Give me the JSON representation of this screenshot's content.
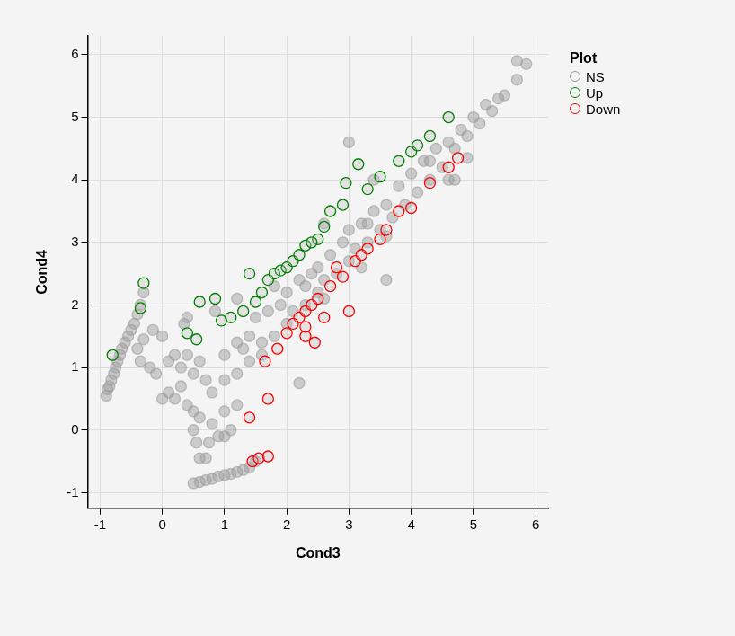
{
  "chart_data": {
    "type": "scatter",
    "x_label": "Cond3",
    "y_label": "Cond4",
    "legend_title": "Plot",
    "legend": "top-right",
    "grid": true,
    "xlim": [
      -1.2,
      6.2
    ],
    "ylim": [
      -1.25,
      6.3
    ],
    "xticks": [
      -1,
      0,
      1,
      2,
      3,
      4,
      5,
      6
    ],
    "yticks": [
      -1,
      0,
      1,
      2,
      3,
      4,
      5,
      6
    ],
    "series": [
      {
        "name": "NS",
        "color": "#999999",
        "marker": "circle",
        "values": [
          [
            -0.9,
            0.55
          ],
          [
            -0.88,
            0.65
          ],
          [
            -0.85,
            0.7
          ],
          [
            -0.82,
            0.8
          ],
          [
            -0.78,
            0.9
          ],
          [
            -0.75,
            1.0
          ],
          [
            -0.72,
            1.1
          ],
          [
            -0.68,
            1.2
          ],
          [
            -0.65,
            1.3
          ],
          [
            -0.6,
            1.4
          ],
          [
            -0.55,
            1.5
          ],
          [
            -0.5,
            1.6
          ],
          [
            -0.45,
            1.7
          ],
          [
            -0.4,
            1.85
          ],
          [
            -0.35,
            2.0
          ],
          [
            -0.3,
            2.2
          ],
          [
            -0.4,
            1.3
          ],
          [
            -0.3,
            1.45
          ],
          [
            -0.15,
            1.6
          ],
          [
            0.0,
            1.5
          ],
          [
            -0.35,
            1.1
          ],
          [
            -0.2,
            1.0
          ],
          [
            -0.1,
            0.9
          ],
          [
            0.0,
            0.5
          ],
          [
            0.1,
            0.6
          ],
          [
            0.2,
            0.5
          ],
          [
            0.3,
            0.7
          ],
          [
            0.4,
            0.4
          ],
          [
            0.5,
            0.3
          ],
          [
            0.6,
            0.2
          ],
          [
            0.5,
            0.0
          ],
          [
            0.55,
            -0.2
          ],
          [
            0.6,
            -0.45
          ],
          [
            0.7,
            -0.45
          ],
          [
            0.75,
            -0.2
          ],
          [
            0.8,
            0.1
          ],
          [
            0.9,
            -0.1
          ],
          [
            0.3,
            1.0
          ],
          [
            0.4,
            1.2
          ],
          [
            0.5,
            0.9
          ],
          [
            0.6,
            1.1
          ],
          [
            0.7,
            0.8
          ],
          [
            0.8,
            0.6
          ],
          [
            1.0,
            0.3
          ],
          [
            1.1,
            0.0
          ],
          [
            1.0,
            -0.1
          ],
          [
            1.2,
            0.4
          ],
          [
            0.2,
            1.2
          ],
          [
            0.1,
            1.1
          ],
          [
            0.35,
            1.7
          ],
          [
            0.4,
            1.8
          ],
          [
            0.5,
            -0.85
          ],
          [
            0.6,
            -0.83
          ],
          [
            0.7,
            -0.8
          ],
          [
            0.8,
            -0.78
          ],
          [
            0.9,
            -0.74
          ],
          [
            1.0,
            -0.72
          ],
          [
            1.1,
            -0.7
          ],
          [
            1.2,
            -0.67
          ],
          [
            1.3,
            -0.64
          ],
          [
            1.4,
            -0.6
          ],
          [
            1.5,
            -0.5
          ],
          [
            1.0,
            1.2
          ],
          [
            1.0,
            0.8
          ],
          [
            1.2,
            1.4
          ],
          [
            1.2,
            0.9
          ],
          [
            1.4,
            1.5
          ],
          [
            1.4,
            1.1
          ],
          [
            1.5,
            1.8
          ],
          [
            1.6,
            1.4
          ],
          [
            1.7,
            1.9
          ],
          [
            1.8,
            1.5
          ],
          [
            1.9,
            2.0
          ],
          [
            2.0,
            1.7
          ],
          [
            2.0,
            2.2
          ],
          [
            2.1,
            1.9
          ],
          [
            2.2,
            2.4
          ],
          [
            2.3,
            2.0
          ],
          [
            2.4,
            2.5
          ],
          [
            2.5,
            2.2
          ],
          [
            2.5,
            2.6
          ],
          [
            2.6,
            2.4
          ],
          [
            2.7,
            2.8
          ],
          [
            2.8,
            2.5
          ],
          [
            2.9,
            3.0
          ],
          [
            3.0,
            2.7
          ],
          [
            3.0,
            3.2
          ],
          [
            3.1,
            2.9
          ],
          [
            3.2,
            3.3
          ],
          [
            3.3,
            3.0
          ],
          [
            3.4,
            3.5
          ],
          [
            3.5,
            3.2
          ],
          [
            3.6,
            3.6
          ],
          [
            3.7,
            3.4
          ],
          [
            3.8,
            3.9
          ],
          [
            3.9,
            3.6
          ],
          [
            4.0,
            4.1
          ],
          [
            4.1,
            3.8
          ],
          [
            4.2,
            4.3
          ],
          [
            4.3,
            4.0
          ],
          [
            4.4,
            4.5
          ],
          [
            4.5,
            4.2
          ],
          [
            4.6,
            4.6
          ],
          [
            4.7,
            4.5
          ],
          [
            4.8,
            4.8
          ],
          [
            4.9,
            4.7
          ],
          [
            5.0,
            5.0
          ],
          [
            5.1,
            4.9
          ],
          [
            5.2,
            5.2
          ],
          [
            5.3,
            5.1
          ],
          [
            5.4,
            5.3
          ],
          [
            5.5,
            5.35
          ],
          [
            5.7,
            5.9
          ],
          [
            5.85,
            5.85
          ],
          [
            5.7,
            5.6
          ],
          [
            1.2,
            2.1
          ],
          [
            1.8,
            2.3
          ],
          [
            2.2,
            0.75
          ],
          [
            3.0,
            4.6
          ],
          [
            3.6,
            2.4
          ],
          [
            3.2,
            2.6
          ],
          [
            4.7,
            4.0
          ],
          [
            4.9,
            4.35
          ],
          [
            2.6,
            3.3
          ],
          [
            3.4,
            4.0
          ],
          [
            0.85,
            1.9
          ],
          [
            1.3,
            1.3
          ],
          [
            2.3,
            2.3
          ],
          [
            3.3,
            3.3
          ],
          [
            4.3,
            4.3
          ],
          [
            1.6,
            1.2
          ],
          [
            2.6,
            2.1
          ],
          [
            3.6,
            3.1
          ],
          [
            4.6,
            4.0
          ]
        ]
      },
      {
        "name": "Up",
        "color": "#008000",
        "marker": "circle",
        "values": [
          [
            -0.8,
            1.2
          ],
          [
            -0.35,
            1.95
          ],
          [
            -0.3,
            2.35
          ],
          [
            0.55,
            1.45
          ],
          [
            0.6,
            2.05
          ],
          [
            0.85,
            2.1
          ],
          [
            0.95,
            1.75
          ],
          [
            1.1,
            1.8
          ],
          [
            1.4,
            2.5
          ],
          [
            1.5,
            2.05
          ],
          [
            1.6,
            2.2
          ],
          [
            1.7,
            2.4
          ],
          [
            1.9,
            2.55
          ],
          [
            2.0,
            2.6
          ],
          [
            2.1,
            2.7
          ],
          [
            2.2,
            2.8
          ],
          [
            2.3,
            2.95
          ],
          [
            2.5,
            3.05
          ],
          [
            2.6,
            3.25
          ],
          [
            2.7,
            3.5
          ],
          [
            2.9,
            3.6
          ],
          [
            2.95,
            3.95
          ],
          [
            3.15,
            4.25
          ],
          [
            3.3,
            3.85
          ],
          [
            3.5,
            4.05
          ],
          [
            3.8,
            4.3
          ],
          [
            4.0,
            4.45
          ],
          [
            4.1,
            4.55
          ],
          [
            4.3,
            4.7
          ],
          [
            4.6,
            5.0
          ],
          [
            1.3,
            1.9
          ],
          [
            1.8,
            2.5
          ],
          [
            2.4,
            3.0
          ],
          [
            0.4,
            1.55
          ]
        ]
      },
      {
        "name": "Down",
        "color": "#ff0000",
        "marker": "circle",
        "values": [
          [
            1.4,
            0.2
          ],
          [
            1.45,
            -0.5
          ],
          [
            1.55,
            -0.45
          ],
          [
            1.7,
            -0.42
          ],
          [
            1.7,
            0.5
          ],
          [
            1.65,
            1.1
          ],
          [
            1.85,
            1.3
          ],
          [
            2.0,
            1.55
          ],
          [
            2.2,
            1.8
          ],
          [
            2.3,
            1.9
          ],
          [
            2.4,
            2.0
          ],
          [
            2.3,
            1.5
          ],
          [
            2.45,
            1.4
          ],
          [
            2.3,
            1.65
          ],
          [
            2.5,
            2.1
          ],
          [
            2.6,
            1.8
          ],
          [
            2.7,
            2.3
          ],
          [
            2.9,
            2.45
          ],
          [
            3.0,
            1.9
          ],
          [
            3.1,
            2.7
          ],
          [
            3.2,
            2.8
          ],
          [
            3.5,
            3.05
          ],
          [
            3.6,
            3.2
          ],
          [
            3.8,
            3.5
          ],
          [
            4.0,
            3.55
          ],
          [
            4.3,
            3.95
          ],
          [
            4.6,
            4.2
          ],
          [
            4.75,
            4.35
          ],
          [
            2.1,
            1.7
          ],
          [
            2.8,
            2.6
          ],
          [
            3.3,
            2.9
          ]
        ]
      }
    ]
  }
}
